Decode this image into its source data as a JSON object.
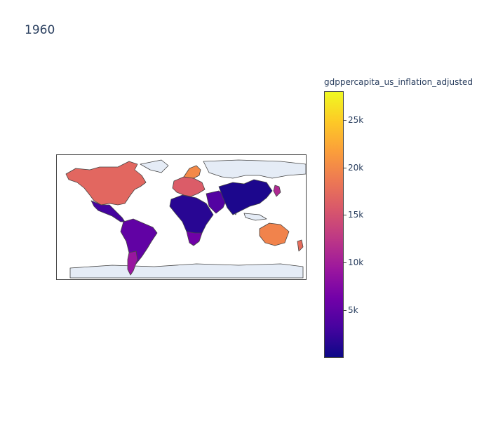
{
  "title": "1960",
  "colorbar": {
    "title": "gdppercapita_us_inflation_adjusted",
    "min": 0,
    "max": 28000,
    "colors": [
      "#0d0887",
      "#46039f",
      "#7201a8",
      "#9c179e",
      "#bd3786",
      "#d8576b",
      "#ed7953",
      "#fb9f3a",
      "#fdca26",
      "#f0f921"
    ],
    "ticks": [
      {
        "label": "5k",
        "value": 5000
      },
      {
        "label": "10k",
        "value": 10000
      },
      {
        "label": "15k",
        "value": 15000
      },
      {
        "label": "20k",
        "value": 20000
      },
      {
        "label": "25k",
        "value": 25000
      }
    ]
  },
  "map": {
    "projection": "equirectangular",
    "no_data_color": "#e5ecf6",
    "border_color": "#444444",
    "regions": [
      {
        "name": "North America (USA/Canada)",
        "value": 17000
      },
      {
        "name": "Mexico & Central America",
        "value": 3000
      },
      {
        "name": "South America",
        "value": 5000
      },
      {
        "name": "Argentina",
        "value": 9000
      },
      {
        "name": "Europe",
        "value": 16000
      },
      {
        "name": "Scandinavia",
        "value": 20000
      },
      {
        "name": "Africa",
        "value": 1500
      },
      {
        "name": "South Africa",
        "value": 6000
      },
      {
        "name": "Middle East",
        "value": 4000
      },
      {
        "name": "Asia",
        "value": 800
      },
      {
        "name": "Japan",
        "value": 11000
      },
      {
        "name": "Australia",
        "value": 19500
      },
      {
        "name": "New Zealand",
        "value": 17500
      }
    ]
  }
}
